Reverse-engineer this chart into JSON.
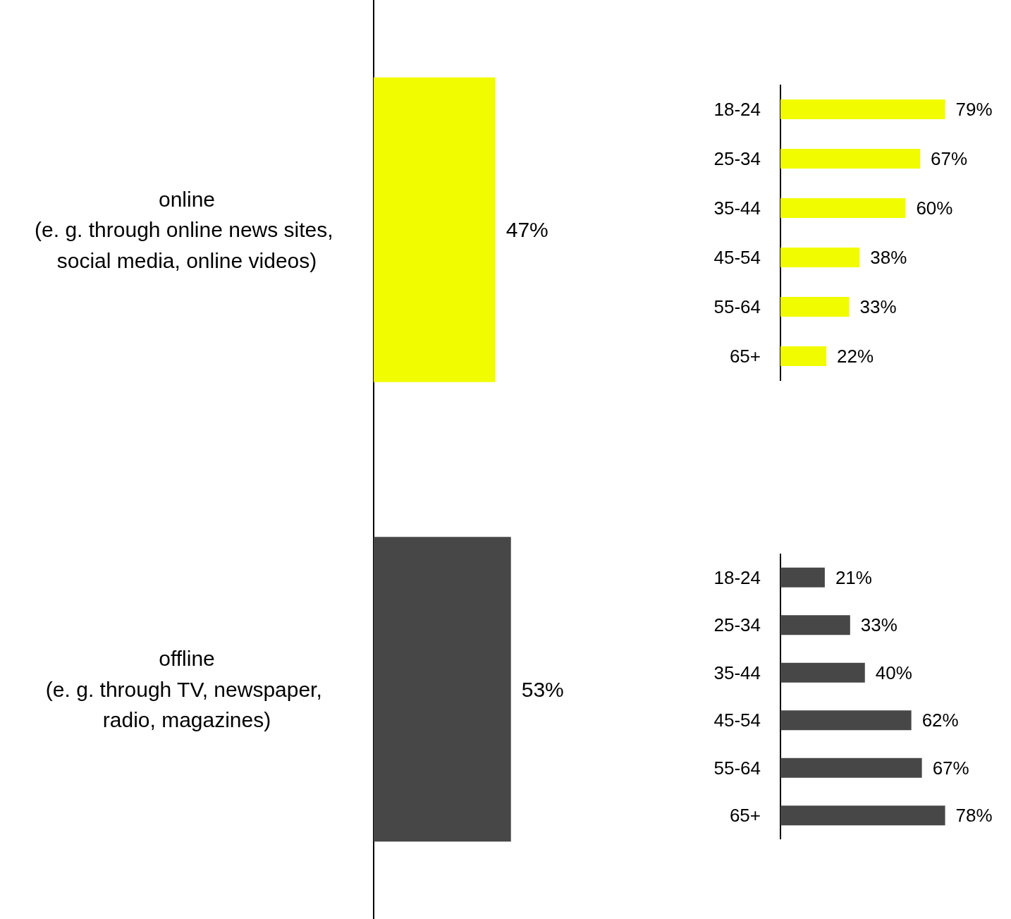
{
  "chart_data": [
    {
      "type": "bar",
      "orientation": "horizontal",
      "categories": [
        "online\n(e. g. through online news sites, social media, online videos)",
        "offline\n(e. g. through TV, newspaper, radio, magazines)"
      ],
      "values": [
        47,
        53
      ],
      "colors": [
        "#f2fc00",
        "#474747"
      ],
      "value_labels": [
        "47%",
        "53%"
      ]
    },
    {
      "type": "bar",
      "orientation": "horizontal",
      "categories": [
        "18-24",
        "25-34",
        "35-44",
        "45-54",
        "55-64",
        "65+"
      ],
      "values": [
        79,
        67,
        60,
        38,
        33,
        22
      ],
      "color": "#f2fc00",
      "value_labels": [
        "79%",
        "67%",
        "60%",
        "38%",
        "33%",
        "22%"
      ]
    },
    {
      "type": "bar",
      "orientation": "horizontal",
      "categories": [
        "18-24",
        "25-34",
        "35-44",
        "45-54",
        "55-64",
        "65+"
      ],
      "values": [
        21,
        33,
        40,
        62,
        67,
        78
      ],
      "color": "#474747",
      "value_labels": [
        "21%",
        "33%",
        "40%",
        "62%",
        "67%",
        "78%"
      ]
    }
  ]
}
